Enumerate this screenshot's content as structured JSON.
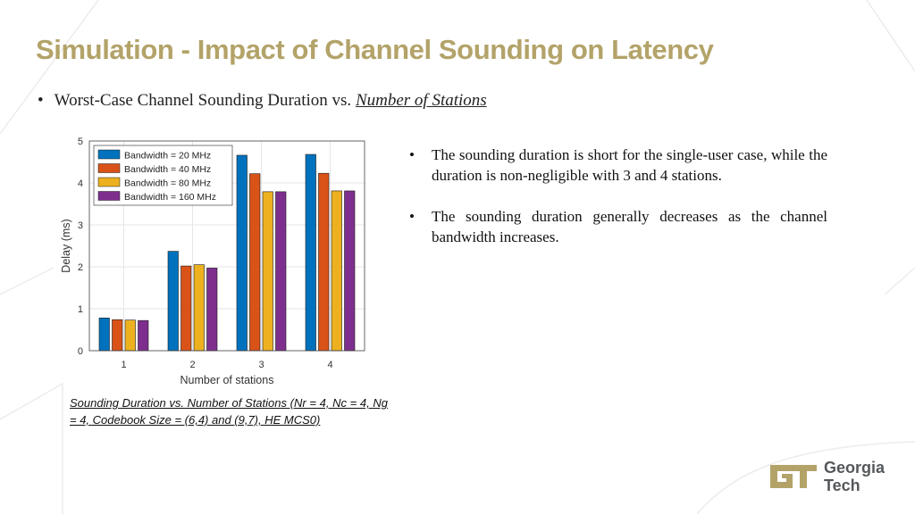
{
  "title": "Simulation - Impact of Channel Sounding on Latency",
  "bullet": {
    "prefix": "Worst-Case Channel Sounding Duration vs. ",
    "emphasis": "Number of Stations"
  },
  "notes": [
    "The sounding duration is short for the single-user case, while the duration is non-negligible with 3 and 4 stations.",
    "The sounding duration generally decreases as the channel bandwidth increases."
  ],
  "caption": "Sounding Duration vs. Number of Stations (Nr = 4, Nc = 4, Ng = 4, Codebook Size = (6,4) and (9,7), HE MCS0)",
  "logo": {
    "line1": "Georgia",
    "line2": "Tech"
  },
  "chart_data": {
    "type": "bar",
    "categories": [
      "1",
      "2",
      "3",
      "4"
    ],
    "series": [
      {
        "name": "Bandwidth = 20 MHz",
        "color": "#0072bd",
        "values": [
          0.78,
          2.37,
          4.66,
          4.68
        ]
      },
      {
        "name": "Bandwidth = 40 MHz",
        "color": "#d95319",
        "values": [
          0.74,
          2.02,
          4.22,
          4.23
        ]
      },
      {
        "name": "Bandwidth = 80 MHz",
        "color": "#edb120",
        "values": [
          0.73,
          2.05,
          3.79,
          3.81
        ]
      },
      {
        "name": "Bandwidth = 160 MHz",
        "color": "#7e2f8e",
        "values": [
          0.72,
          1.97,
          3.79,
          3.81
        ]
      }
    ],
    "xlabel": "Number of stations",
    "ylabel": "Delay (ms)",
    "ylim": [
      0,
      5
    ],
    "yticks": [
      "0",
      "1",
      "2",
      "3",
      "4",
      "5"
    ],
    "grid": true,
    "legend": "top-left"
  }
}
